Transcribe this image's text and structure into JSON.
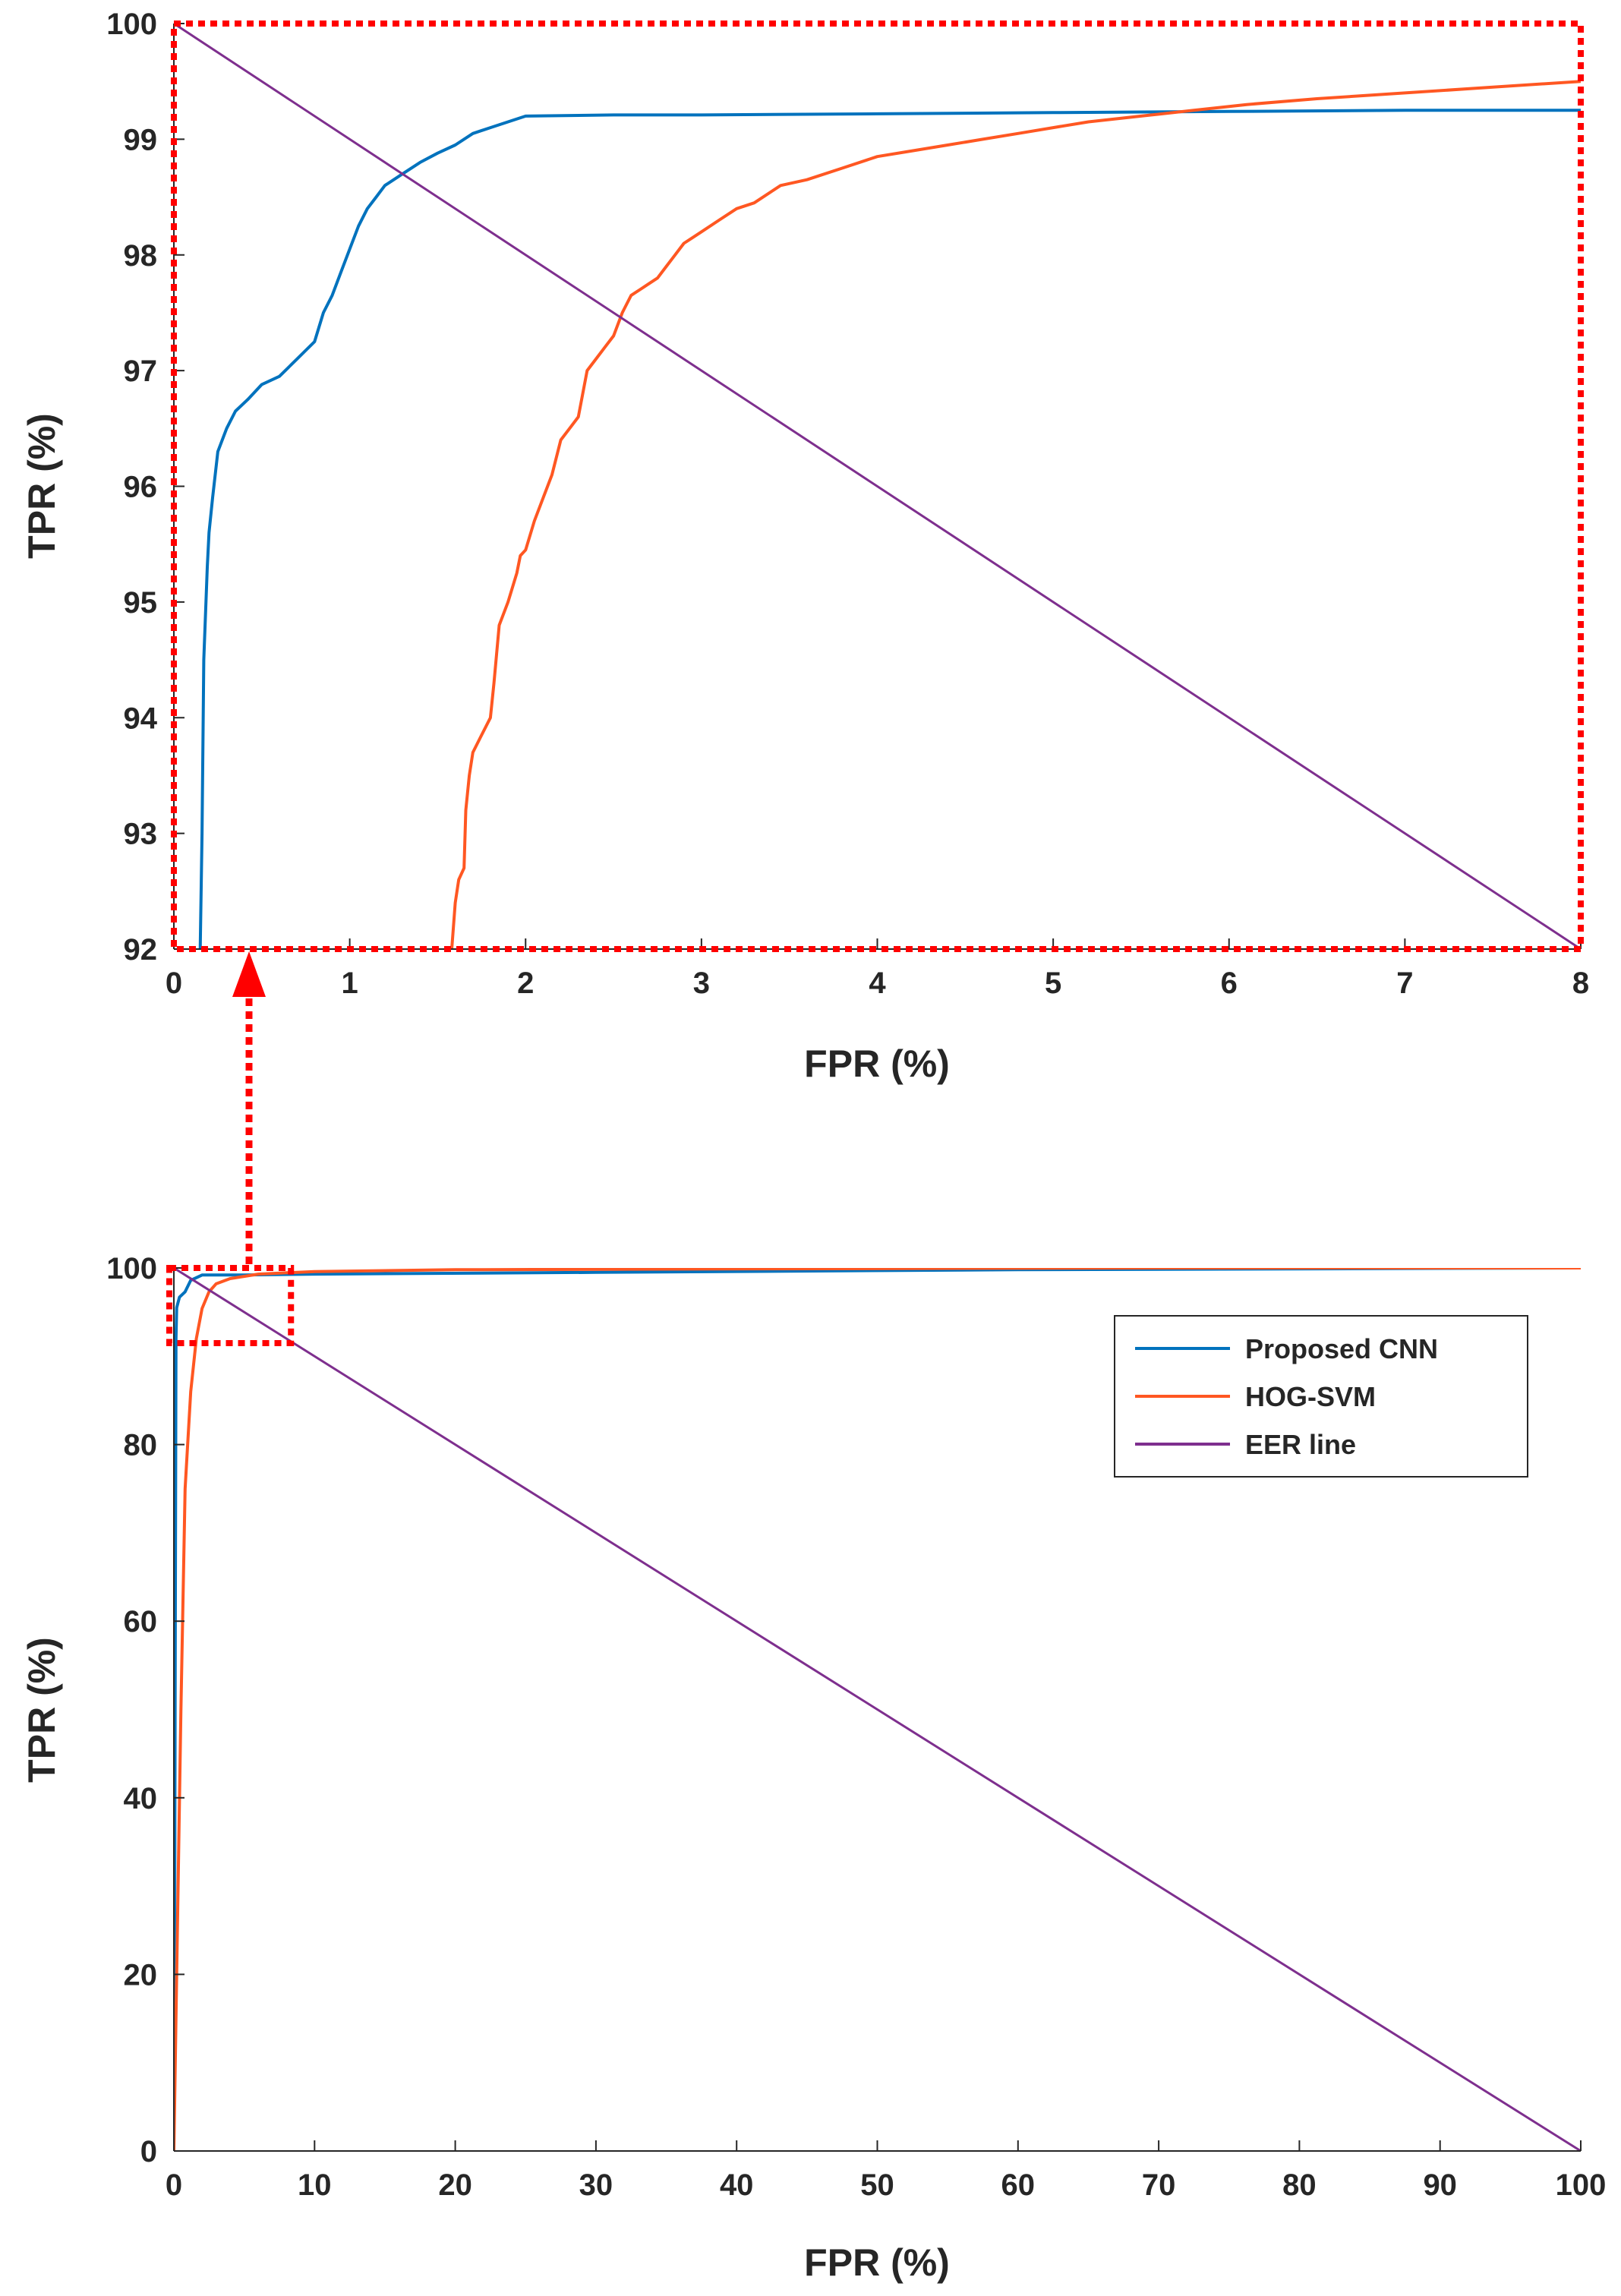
{
  "colors": {
    "cnn": "#0072BD",
    "hog": "#FF5722",
    "eer": "#7E2F8E",
    "zoom_box": "#FF0000",
    "axis": "#262626"
  },
  "chart_data": [
    {
      "id": "zoom",
      "type": "line",
      "xlabel": "FPR (%)",
      "ylabel": "TPR (%)",
      "xlim": [
        0,
        8
      ],
      "ylim": [
        92,
        100
      ],
      "xticks": [
        0,
        1,
        2,
        3,
        4,
        5,
        6,
        7,
        8
      ],
      "yticks": [
        92,
        93,
        94,
        95,
        96,
        97,
        98,
        99,
        100
      ],
      "series": [
        {
          "name": "Proposed CNN",
          "color_key": "cnn",
          "x": [
            0.15,
            0.16,
            0.17,
            0.19,
            0.2,
            0.22,
            0.25,
            0.3,
            0.35,
            0.42,
            0.5,
            0.6,
            0.7,
            0.8,
            0.85,
            0.9,
            0.95,
            1.0,
            1.05,
            1.1,
            1.15,
            1.2,
            1.3,
            1.4,
            1.5,
            1.6,
            1.7,
            1.8,
            1.9,
            2.0,
            2.5,
            3,
            4,
            5,
            6,
            7,
            8
          ],
          "y": [
            92.0,
            93.0,
            94.5,
            95.3,
            95.6,
            95.9,
            96.3,
            96.5,
            96.65,
            96.75,
            96.88,
            96.95,
            97.1,
            97.25,
            97.5,
            97.65,
            97.85,
            98.05,
            98.25,
            98.4,
            98.5,
            98.6,
            98.7,
            98.8,
            98.88,
            98.95,
            99.05,
            99.1,
            99.15,
            99.2,
            99.21,
            99.21,
            99.22,
            99.23,
            99.24,
            99.25,
            99.25
          ]
        },
        {
          "name": "HOG-SVM",
          "color_key": "hog",
          "x": [
            1.58,
            1.6,
            1.62,
            1.65,
            1.66,
            1.68,
            1.7,
            1.75,
            1.8,
            1.82,
            1.85,
            1.9,
            1.95,
            1.97,
            2.0,
            2.05,
            2.1,
            2.15,
            2.2,
            2.25,
            2.3,
            2.35,
            2.4,
            2.45,
            2.5,
            2.55,
            2.6,
            2.65,
            2.7,
            2.75,
            2.8,
            2.85,
            2.9,
            2.95,
            3.0,
            3.1,
            3.2,
            3.3,
            3.45,
            3.6,
            3.8,
            4.0,
            4.2,
            4.4,
            4.6,
            4.8,
            5.0,
            5.2,
            5.5,
            5.8,
            6.1,
            6.5,
            7.0,
            7.5,
            8.0
          ],
          "y": [
            92.0,
            92.4,
            92.6,
            92.7,
            93.2,
            93.5,
            93.7,
            93.85,
            94.0,
            94.3,
            94.8,
            95.0,
            95.25,
            95.4,
            95.45,
            95.7,
            95.9,
            96.1,
            96.4,
            96.5,
            96.6,
            97.0,
            97.1,
            97.2,
            97.3,
            97.5,
            97.65,
            97.7,
            97.75,
            97.8,
            97.9,
            98.0,
            98.1,
            98.15,
            98.2,
            98.3,
            98.4,
            98.45,
            98.6,
            98.65,
            98.75,
            98.85,
            98.9,
            98.95,
            99.0,
            99.05,
            99.1,
            99.15,
            99.2,
            99.25,
            99.3,
            99.35,
            99.4,
            99.45,
            99.5
          ]
        },
        {
          "name": "EER line",
          "color_key": "eer",
          "x": [
            0,
            8
          ],
          "y": [
            100,
            92
          ]
        }
      ]
    },
    {
      "id": "full",
      "type": "line",
      "xlabel": "FPR (%)",
      "ylabel": "TPR (%)",
      "xlim": [
        0,
        100
      ],
      "ylim": [
        0,
        100
      ],
      "xticks": [
        0,
        10,
        20,
        30,
        40,
        50,
        60,
        70,
        80,
        90,
        100
      ],
      "yticks": [
        0,
        20,
        40,
        60,
        80,
        100
      ],
      "legend": {
        "position": "upper-right",
        "entries": [
          "Proposed CNN",
          "HOG-SVM",
          "EER line"
        ]
      },
      "series": [
        {
          "name": "Proposed CNN",
          "color_key": "cnn",
          "x": [
            0,
            0.05,
            0.1,
            0.15,
            0.2,
            0.4,
            0.8,
            1.2,
            2,
            5,
            10,
            30,
            60,
            100
          ],
          "y": [
            0,
            20,
            60,
            92,
            95.5,
            96.7,
            97.3,
            98.6,
            99.2,
            99.2,
            99.3,
            99.5,
            99.8,
            100
          ]
        },
        {
          "name": "HOG-SVM",
          "color_key": "hog",
          "x": [
            0,
            0.2,
            0.5,
            0.8,
            1.2,
            1.6,
            2.0,
            2.5,
            3,
            4,
            6,
            10,
            20,
            40,
            70,
            100
          ],
          "y": [
            0,
            20,
            50,
            75,
            86,
            92,
            95.4,
            97.3,
            98.2,
            98.8,
            99.3,
            99.6,
            99.8,
            99.9,
            100,
            100
          ]
        },
        {
          "name": "EER line",
          "color_key": "eer",
          "x": [
            0,
            100
          ],
          "y": [
            100,
            0
          ]
        }
      ],
      "zoom_region": {
        "x": [
          0,
          8
        ],
        "y": [
          92,
          100
        ]
      }
    }
  ]
}
